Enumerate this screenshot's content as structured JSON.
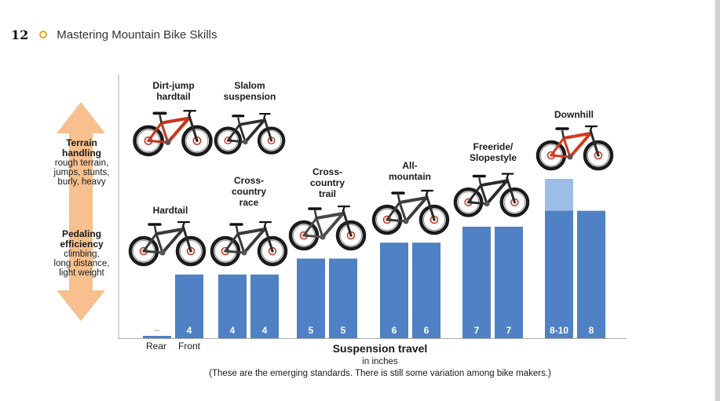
{
  "header": {
    "page_number": "12",
    "chapter_title": "Mastering Mountain Bike Skills"
  },
  "arrow": {
    "top_title_line1": "Terrain",
    "top_title_line2": "handling",
    "top_desc_line1": "rough terrain,",
    "top_desc_line2": "jumps, stunts,",
    "top_desc_line3": "burly, heavy",
    "bottom_title_line1": "Pedaling",
    "bottom_title_line2": "efficiency",
    "bottom_desc_line1": "climbing,",
    "bottom_desc_line2": "long distance,",
    "bottom_desc_line3": "light weight",
    "color": "#f7c08e"
  },
  "colors": {
    "bar": "#4f81c4",
    "bar_light": "#9bbde6",
    "bar_text": "#ffffff"
  },
  "chart_data": {
    "type": "bar",
    "title": "",
    "xlabel": "Suspension travel",
    "xlabel_unit": "in inches",
    "note": "(These are the emerging standards. There is still some variation among bike makers.)",
    "ylabel": "",
    "ylim": [
      0,
      10
    ],
    "group_sublabels": [
      "Rear",
      "Front"
    ],
    "series": [
      {
        "name": "Rear",
        "values": [
          0,
          4,
          5,
          6,
          7,
          8
        ],
        "upper_values": [
          null,
          null,
          null,
          null,
          null,
          10
        ],
        "labels": [
          "--",
          "4",
          "5",
          "6",
          "7",
          "8-10"
        ]
      },
      {
        "name": "Front",
        "values": [
          4,
          4,
          5,
          6,
          7,
          8
        ],
        "labels": [
          "4",
          "4",
          "5",
          "6",
          "7",
          "8"
        ]
      }
    ],
    "categories": [
      {
        "id": "hardtail",
        "label_lines": [
          "Hardtail"
        ]
      },
      {
        "id": "xc-race",
        "label_lines": [
          "Cross-",
          "country",
          "race"
        ]
      },
      {
        "id": "xc-trail",
        "label_lines": [
          "Cross-",
          "country",
          "trail"
        ]
      },
      {
        "id": "all-mountain",
        "label_lines": [
          "All-",
          "mountain"
        ]
      },
      {
        "id": "freeride",
        "label_lines": [
          "Freeride/",
          "Slopestyle"
        ]
      },
      {
        "id": "downhill",
        "label_lines": [
          "Downhill"
        ]
      }
    ],
    "extra_labels": [
      {
        "id": "dirt-jump",
        "label_lines": [
          "Dirt-jump",
          "hardtail"
        ]
      },
      {
        "id": "slalom",
        "label_lines": [
          "Slalom",
          "suspension"
        ]
      }
    ]
  },
  "bike_icons": [
    {
      "name": "dirt-jump-bike-icon",
      "frame": "#c7361f"
    },
    {
      "name": "slalom-bike-icon",
      "frame": "#2d2d2d"
    },
    {
      "name": "hardtail-bike-icon",
      "frame": "#3a3a3a"
    },
    {
      "name": "xc-race-bike-icon",
      "frame": "#3a3a3a"
    },
    {
      "name": "xc-trail-bike-icon",
      "frame": "#4a4a4a"
    },
    {
      "name": "all-mountain-bike-icon",
      "frame": "#3d3d3d"
    },
    {
      "name": "freeride-bike-icon",
      "frame": "#2a2a2a"
    },
    {
      "name": "downhill-bike-icon",
      "frame": "#d23a1e"
    }
  ]
}
